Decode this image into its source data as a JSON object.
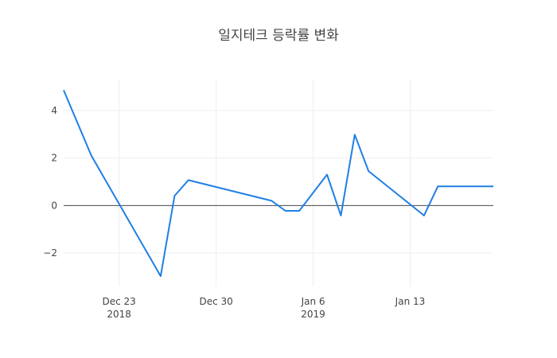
{
  "chart_data": {
    "type": "line",
    "title": "일지테크 등락률 변화",
    "xlabel": "",
    "ylabel": "",
    "x_range": [
      "2018-12-19",
      "2019-01-19"
    ],
    "ylim": [
      -3.4,
      5.3
    ],
    "grid": true,
    "legend": "none",
    "color": "#1f7fe5",
    "x_ticks": [
      {
        "date": "2018-12-23",
        "label": "Dec 23",
        "sublabel": "2018"
      },
      {
        "date": "2018-12-30",
        "label": "Dec 30",
        "sublabel": ""
      },
      {
        "date": "2019-01-06",
        "label": "Jan 6",
        "sublabel": "2019"
      },
      {
        "date": "2019-01-13",
        "label": "Jan 13",
        "sublabel": ""
      }
    ],
    "y_ticks": [
      {
        "value": 4,
        "label": "4"
      },
      {
        "value": 2,
        "label": "2"
      },
      {
        "value": 0,
        "label": "0"
      },
      {
        "value": -2,
        "label": "−2"
      }
    ],
    "x": [
      "2018-12-19",
      "2018-12-21",
      "2018-12-26",
      "2018-12-27",
      "2018-12-28",
      "2019-01-03",
      "2019-01-04",
      "2019-01-05",
      "2019-01-07",
      "2019-01-08",
      "2019-01-09",
      "2019-01-10",
      "2019-01-14",
      "2019-01-15",
      "2019-01-16",
      "2019-01-17",
      "2019-01-19"
    ],
    "y": [
      4.85,
      2.1,
      -2.97,
      0.41,
      1.07,
      0.2,
      -0.22,
      -0.22,
      1.3,
      -0.42,
      2.98,
      1.45,
      -0.42,
      0.81,
      0.81,
      0.81,
      0.81
    ]
  }
}
